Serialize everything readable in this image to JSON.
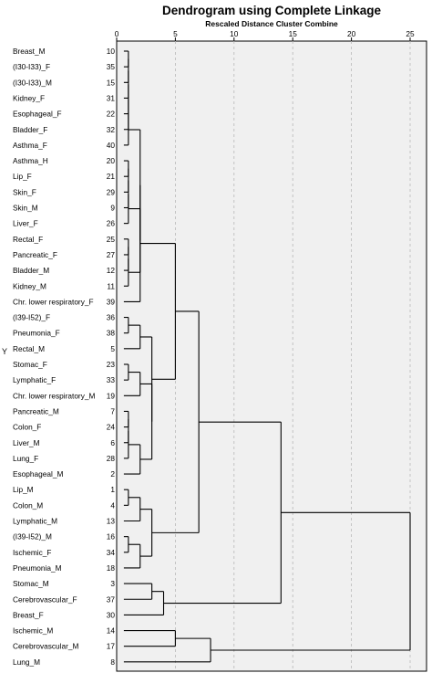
{
  "chart_data": {
    "type": "dendrogram",
    "title": "Dendrogram using Complete Linkage",
    "subtitle": "Rescaled Distance Cluster Combine",
    "ylabel": "Y",
    "xlim": [
      0,
      25
    ],
    "xticks": [
      0,
      5,
      10,
      15,
      20,
      25
    ],
    "grid": true,
    "leaves": [
      {
        "label": "Breast_M",
        "id": "10"
      },
      {
        "label": "(I30-I33)_F",
        "id": "35"
      },
      {
        "label": "(I30-I33)_M",
        "id": "15"
      },
      {
        "label": "Kidney_F",
        "id": "31"
      },
      {
        "label": "Esophageal_F",
        "id": "22"
      },
      {
        "label": "Bladder_F",
        "id": "32"
      },
      {
        "label": "Asthma_F",
        "id": "40"
      },
      {
        "label": "Asthma_H",
        "id": "20"
      },
      {
        "label": "Lip_F",
        "id": "21"
      },
      {
        "label": "Skin_F",
        "id": "29"
      },
      {
        "label": "Skin_M",
        "id": "9"
      },
      {
        "label": "Liver_F",
        "id": "26"
      },
      {
        "label": "Rectal_F",
        "id": "25"
      },
      {
        "label": "Pancreatic_F",
        "id": "27"
      },
      {
        "label": "Bladder_M",
        "id": "12"
      },
      {
        "label": "Kidney_M",
        "id": "11"
      },
      {
        "label": "Chr. lower respiratory_F",
        "id": "39"
      },
      {
        "label": "(I39-I52)_F",
        "id": "36"
      },
      {
        "label": "Pneumonia_F",
        "id": "38"
      },
      {
        "label": "Rectal_M",
        "id": "5"
      },
      {
        "label": "Stomac_F",
        "id": "23"
      },
      {
        "label": "Lymphatic_F",
        "id": "33"
      },
      {
        "label": "Chr. lower respiratory_M",
        "id": "19"
      },
      {
        "label": "Pancreatic_M",
        "id": "7"
      },
      {
        "label": "Colon_F",
        "id": "24"
      },
      {
        "label": "Liver_M",
        "id": "6"
      },
      {
        "label": "Lung_F",
        "id": "28"
      },
      {
        "label": "Esophageal_M",
        "id": "2"
      },
      {
        "label": "Lip_M",
        "id": "1"
      },
      {
        "label": "Colon_M",
        "id": "4"
      },
      {
        "label": "Lymphatic_M",
        "id": "13"
      },
      {
        "label": "(I39-I52)_M",
        "id": "16"
      },
      {
        "label": "Ischemic_F",
        "id": "34"
      },
      {
        "label": "Pneumonia_M",
        "id": "18"
      },
      {
        "label": "Stomac_M",
        "id": "3"
      },
      {
        "label": "Cerebrovascular_F",
        "id": "37"
      },
      {
        "label": "Breast_F",
        "id": "30"
      },
      {
        "label": "Ischemic_M",
        "id": "14"
      },
      {
        "label": "Cerebrovascular_M",
        "id": "17"
      },
      {
        "label": "Lung_M",
        "id": "8"
      }
    ],
    "merges": [
      {
        "a": "L0",
        "b": "L1",
        "h": 1
      },
      {
        "a": "N0",
        "b": "L2",
        "h": 1
      },
      {
        "a": "N1",
        "b": "L3",
        "h": 1
      },
      {
        "a": "N2",
        "b": "L4",
        "h": 1
      },
      {
        "a": "N3",
        "b": "L5",
        "h": 1
      },
      {
        "a": "N4",
        "b": "L6",
        "h": 1
      },
      {
        "a": "L7",
        "b": "L8",
        "h": 1
      },
      {
        "a": "N6",
        "b": "L9",
        "h": 1
      },
      {
        "a": "N7",
        "b": "L10",
        "h": 1
      },
      {
        "a": "N8",
        "b": "L11",
        "h": 1
      },
      {
        "a": "L12",
        "b": "L13",
        "h": 1
      },
      {
        "a": "N10",
        "b": "L14",
        "h": 1
      },
      {
        "a": "N11",
        "b": "L15",
        "h": 1
      },
      {
        "a": "N9",
        "b": "N12",
        "h": 2
      },
      {
        "a": "N5",
        "b": "N13",
        "h": 2
      },
      {
        "a": "N14",
        "b": "L16",
        "h": 2
      },
      {
        "a": "L17",
        "b": "L18",
        "h": 1
      },
      {
        "a": "N16",
        "b": "L19",
        "h": 2
      },
      {
        "a": "L20",
        "b": "L21",
        "h": 1
      },
      {
        "a": "N18",
        "b": "L22",
        "h": 2
      },
      {
        "a": "L23",
        "b": "L24",
        "h": 1
      },
      {
        "a": "N20",
        "b": "L25",
        "h": 1
      },
      {
        "a": "N21",
        "b": "L26",
        "h": 1
      },
      {
        "a": "N22",
        "b": "L27",
        "h": 2
      },
      {
        "a": "N19",
        "b": "N23",
        "h": 3
      },
      {
        "a": "N17",
        "b": "N24",
        "h": 3
      },
      {
        "a": "N15",
        "b": "N25",
        "h": 5
      },
      {
        "a": "L28",
        "b": "L29",
        "h": 1
      },
      {
        "a": "N27",
        "b": "L30",
        "h": 2
      },
      {
        "a": "L31",
        "b": "L32",
        "h": 1
      },
      {
        "a": "N29",
        "b": "L33",
        "h": 2
      },
      {
        "a": "N28",
        "b": "N30",
        "h": 3
      },
      {
        "a": "N26",
        "b": "N31",
        "h": 7
      },
      {
        "a": "L34",
        "b": "L35",
        "h": 3
      },
      {
        "a": "N33",
        "b": "L36",
        "h": 4
      },
      {
        "a": "N32",
        "b": "N34",
        "h": 14
      },
      {
        "a": "L37",
        "b": "L38",
        "h": 5
      },
      {
        "a": "N36",
        "b": "L39",
        "h": 8
      },
      {
        "a": "N35",
        "b": "N37",
        "h": 25
      }
    ]
  }
}
